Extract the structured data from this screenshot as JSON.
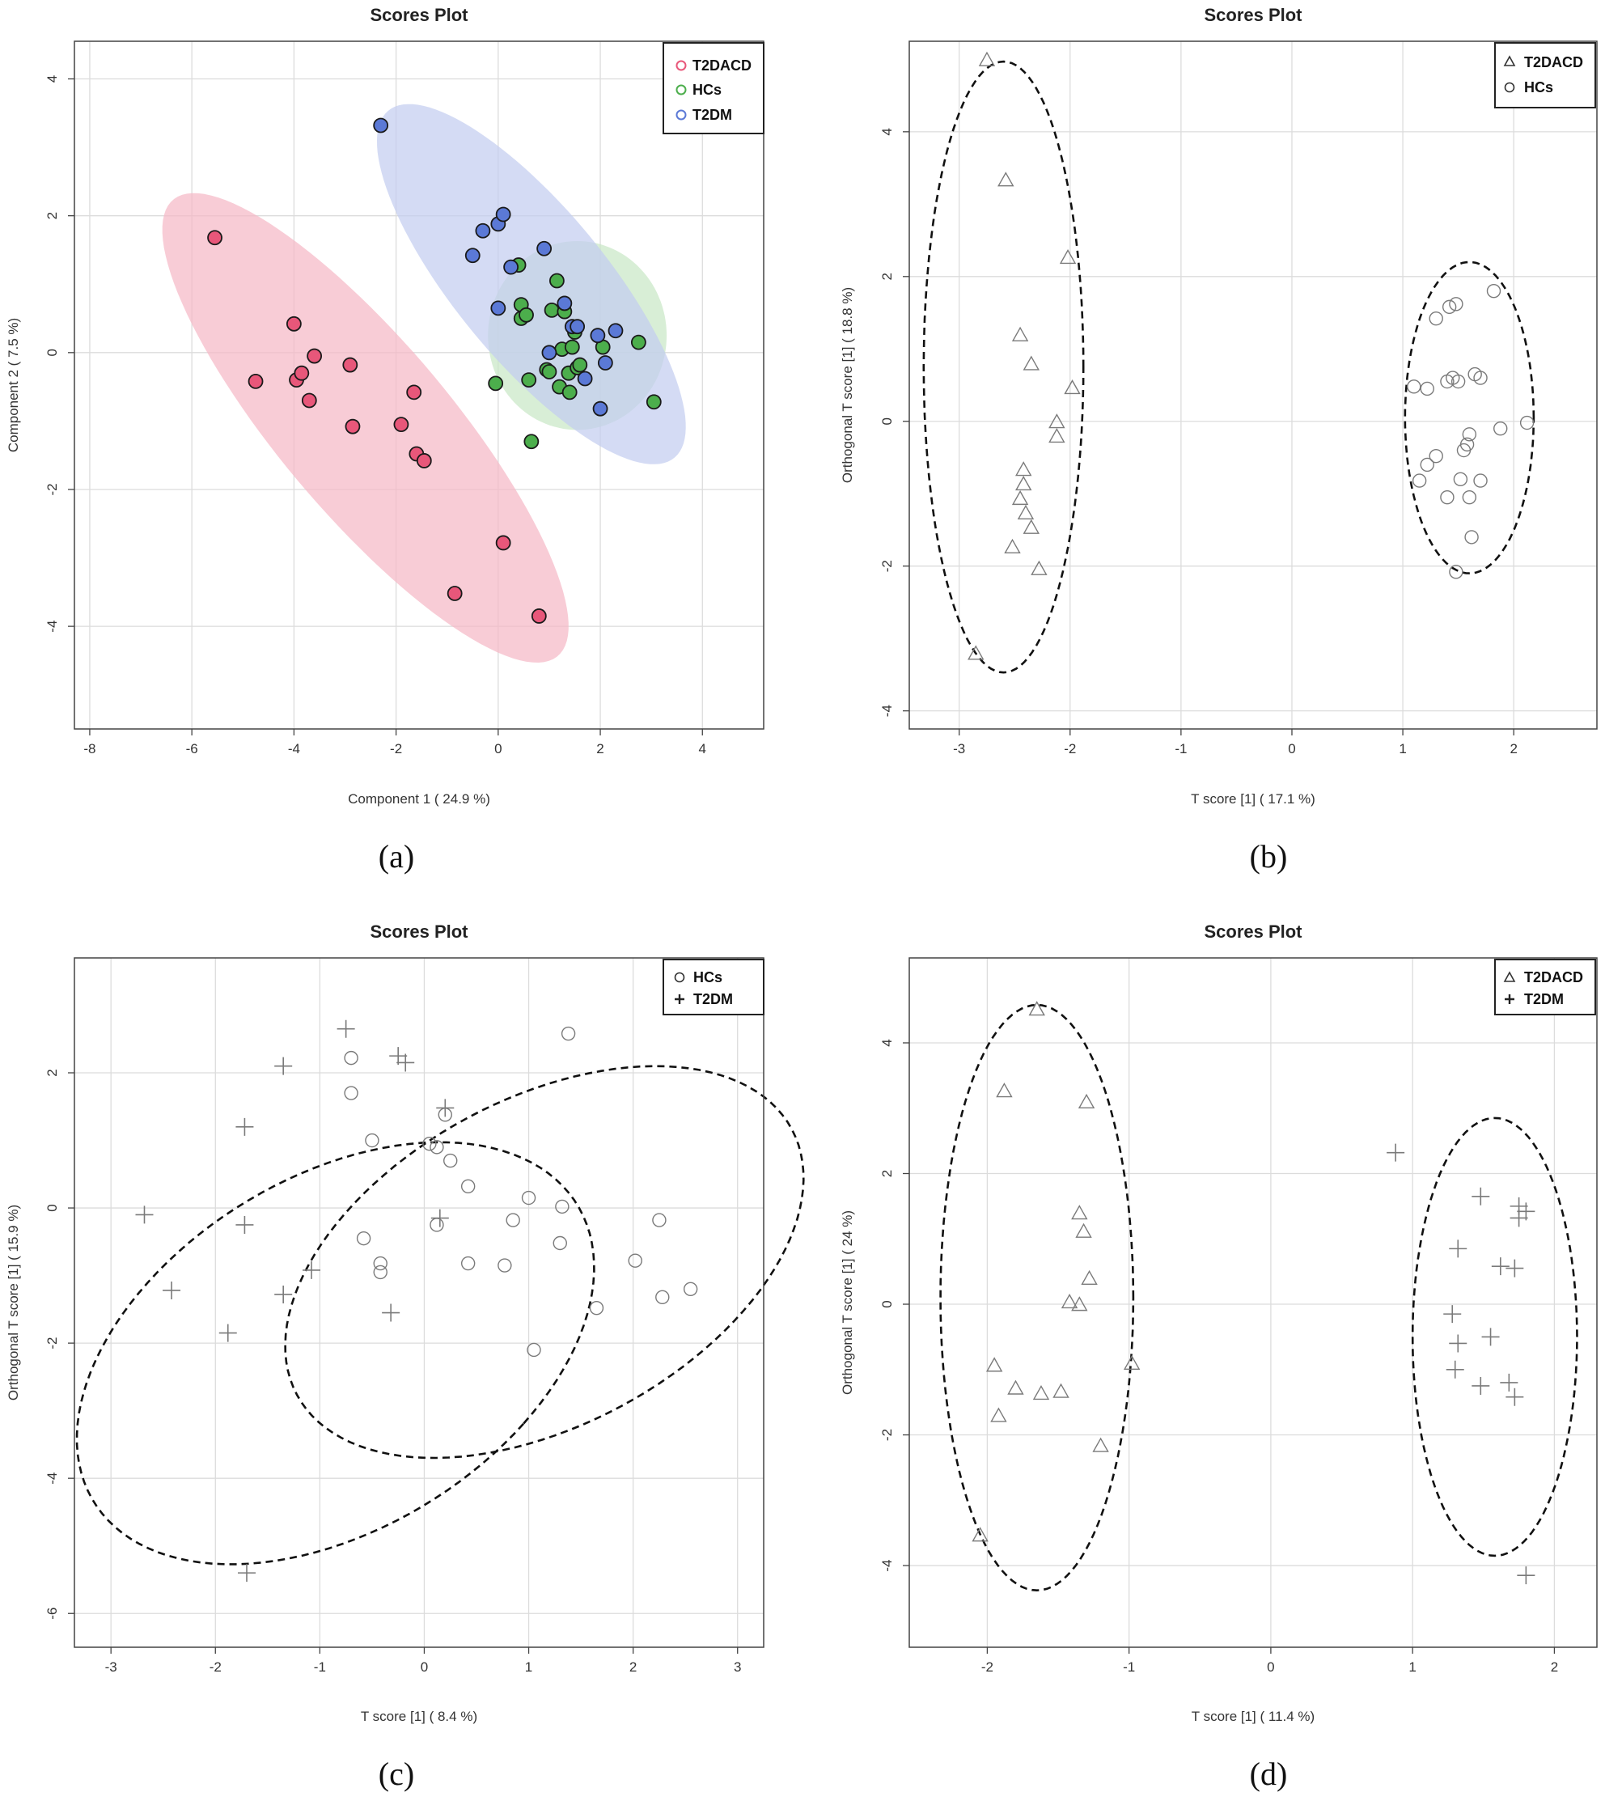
{
  "figure": {
    "panel_labels": [
      "(a)",
      "(b)",
      "(c)",
      "(d)"
    ]
  },
  "chart_data": [
    {
      "id": "a",
      "type": "scatter",
      "title": "Scores Plot",
      "xlabel": "Component 1 ( 24.9 %)",
      "ylabel": "Component 2 ( 7.5 %)",
      "xlim": [
        -8.3,
        5.2
      ],
      "ylim": [
        -5.5,
        4.55
      ],
      "xticks": [
        -8,
        -6,
        -4,
        -2,
        0,
        2,
        4
      ],
      "yticks": [
        -4,
        -2,
        0,
        2,
        4
      ],
      "legend_position": "top-right",
      "colors": {
        "T2DACD": "#e8577a",
        "HCs": "#4cae4c",
        "T2DM": "#5b79d6"
      },
      "fills": {
        "T2DACD": "#f5b8c6",
        "HCs": "#c9e8c6",
        "T2DM": "#c4cdf0"
      },
      "series": [
        {
          "name": "T2DACD",
          "marker": "circle",
          "ellipse": {
            "cx": -2.6,
            "cy": -1.1,
            "rx": 5.05,
            "ry": 1.45,
            "angle": -40
          },
          "points": [
            [
              -5.55,
              1.68
            ],
            [
              -4.75,
              -0.42
            ],
            [
              -4.0,
              0.42
            ],
            [
              -3.95,
              -0.4
            ],
            [
              -3.85,
              -0.3
            ],
            [
              -3.7,
              -0.7
            ],
            [
              -3.6,
              -0.05
            ],
            [
              -2.9,
              -0.18
            ],
            [
              -2.85,
              -1.08
            ],
            [
              -1.9,
              -1.05
            ],
            [
              -1.65,
              -0.58
            ],
            [
              -1.6,
              -1.48
            ],
            [
              -1.45,
              -1.58
            ],
            [
              -0.85,
              -3.52
            ],
            [
              0.1,
              -2.78
            ],
            [
              0.8,
              -3.85
            ]
          ]
        },
        {
          "name": "HCs",
          "marker": "circle",
          "ellipse": {
            "cx": 1.55,
            "cy": 0.25,
            "rx": 1.75,
            "ry": 1.38,
            "angle": 0
          },
          "points": [
            [
              -0.05,
              -0.45
            ],
            [
              0.4,
              1.28
            ],
            [
              0.45,
              0.7
            ],
            [
              0.45,
              0.5
            ],
            [
              0.55,
              0.55
            ],
            [
              0.6,
              -0.4
            ],
            [
              0.65,
              -1.3
            ],
            [
              0.95,
              -0.25
            ],
            [
              1.0,
              -0.28
            ],
            [
              1.05,
              0.62
            ],
            [
              1.15,
              1.05
            ],
            [
              1.2,
              -0.5
            ],
            [
              1.25,
              0.05
            ],
            [
              1.3,
              0.6
            ],
            [
              1.38,
              -0.3
            ],
            [
              1.4,
              -0.58
            ],
            [
              1.45,
              0.08
            ],
            [
              1.5,
              0.3
            ],
            [
              1.55,
              -0.22
            ],
            [
              1.6,
              -0.18
            ],
            [
              2.05,
              0.08
            ],
            [
              2.75,
              0.15
            ],
            [
              3.05,
              -0.72
            ]
          ]
        },
        {
          "name": "T2DM",
          "marker": "circle",
          "ellipse": {
            "cx": 0.65,
            "cy": 1.0,
            "rx": 3.8,
            "ry": 1.28,
            "angle": -40
          },
          "points": [
            [
              -2.3,
              3.32
            ],
            [
              -0.5,
              1.42
            ],
            [
              -0.3,
              1.78
            ],
            [
              0.0,
              1.88
            ],
            [
              0.1,
              2.02
            ],
            [
              0.25,
              1.25
            ],
            [
              0.0,
              0.65
            ],
            [
              0.9,
              1.52
            ],
            [
              1.0,
              0.0
            ],
            [
              1.3,
              0.72
            ],
            [
              1.45,
              0.38
            ],
            [
              1.55,
              0.38
            ],
            [
              1.7,
              -0.38
            ],
            [
              1.95,
              0.25
            ],
            [
              2.0,
              -0.82
            ],
            [
              2.1,
              -0.15
            ],
            [
              2.3,
              0.32
            ]
          ]
        }
      ]
    },
    {
      "id": "b",
      "type": "scatter",
      "title": "Scores Plot",
      "xlabel": "T score [1] ( 17.1 %)",
      "ylabel": "Orthogonal T score [1] ( 18.8 %)",
      "xlim": [
        -3.45,
        2.75
      ],
      "ylim": [
        -4.25,
        5.25
      ],
      "xticks": [
        -3,
        -2,
        -1,
        0,
        1,
        2
      ],
      "yticks": [
        -4,
        -2,
        0,
        2,
        4
      ],
      "legend_position": "top-right",
      "series": [
        {
          "name": "T2DACD",
          "marker": "triangle",
          "ellipse": {
            "cx": -2.6,
            "cy": 0.75,
            "rx": 0.72,
            "ry": 4.22,
            "angle": 0
          },
          "points": [
            [
              -2.75,
              4.98
            ],
            [
              -2.58,
              3.32
            ],
            [
              -2.02,
              2.25
            ],
            [
              -2.45,
              1.18
            ],
            [
              -2.35,
              0.78
            ],
            [
              -1.98,
              0.45
            ],
            [
              -2.12,
              -0.02
            ],
            [
              -2.12,
              -0.22
            ],
            [
              -2.42,
              -0.68
            ],
            [
              -2.42,
              -0.88
            ],
            [
              -2.45,
              -1.08
            ],
            [
              -2.4,
              -1.28
            ],
            [
              -2.35,
              -1.48
            ],
            [
              -2.52,
              -1.75
            ],
            [
              -2.28,
              -2.05
            ],
            [
              -2.85,
              -3.22
            ]
          ]
        },
        {
          "name": "HCs",
          "marker": "circle",
          "ellipse": {
            "cx": 1.6,
            "cy": 0.05,
            "rx": 0.58,
            "ry": 2.15,
            "angle": 0
          },
          "points": [
            [
              1.3,
              1.42
            ],
            [
              1.42,
              1.58
            ],
            [
              1.48,
              1.62
            ],
            [
              1.82,
              1.8
            ],
            [
              1.1,
              0.48
            ],
            [
              1.22,
              0.45
            ],
            [
              1.4,
              0.55
            ],
            [
              1.45,
              0.6
            ],
            [
              1.5,
              0.55
            ],
            [
              1.65,
              0.65
            ],
            [
              1.7,
              0.6
            ],
            [
              1.6,
              -0.18
            ],
            [
              1.58,
              -0.32
            ],
            [
              1.55,
              -0.4
            ],
            [
              1.88,
              -0.1
            ],
            [
              2.12,
              -0.02
            ],
            [
              1.3,
              -0.48
            ],
            [
              1.22,
              -0.6
            ],
            [
              1.15,
              -0.82
            ],
            [
              1.52,
              -0.8
            ],
            [
              1.7,
              -0.82
            ],
            [
              1.4,
              -1.05
            ],
            [
              1.6,
              -1.05
            ],
            [
              1.62,
              -1.6
            ],
            [
              1.48,
              -2.08
            ]
          ]
        }
      ]
    },
    {
      "id": "c",
      "type": "scatter",
      "title": "Scores Plot",
      "xlabel": "T score [1] ( 8.4 %)",
      "ylabel": "Orthogonal T score [1] ( 15.9 %)",
      "xlim": [
        -3.35,
        3.25
      ],
      "ylim": [
        -6.5,
        3.7
      ],
      "xticks": [
        -3,
        -2,
        -1,
        0,
        1,
        2,
        3
      ],
      "yticks": [
        -6,
        -4,
        -2,
        0,
        2
      ],
      "legend_position": "top-right",
      "series": [
        {
          "name": "HCs",
          "marker": "circle",
          "ellipse": {
            "cx": 1.15,
            "cy": -0.8,
            "rx": 2.0,
            "ry": 3.25,
            "angle": -35
          },
          "points": [
            [
              1.38,
              2.58
            ],
            [
              -0.7,
              2.22
            ],
            [
              -0.7,
              1.7
            ],
            [
              0.2,
              1.38
            ],
            [
              -0.5,
              1.0
            ],
            [
              0.05,
              0.95
            ],
            [
              0.12,
              0.9
            ],
            [
              0.25,
              0.7
            ],
            [
              0.42,
              0.32
            ],
            [
              1.0,
              0.15
            ],
            [
              1.32,
              0.02
            ],
            [
              2.25,
              -0.18
            ],
            [
              0.85,
              -0.18
            ],
            [
              0.12,
              -0.25
            ],
            [
              -0.58,
              -0.45
            ],
            [
              1.3,
              -0.52
            ],
            [
              -0.42,
              -0.82
            ],
            [
              -0.42,
              -0.95
            ],
            [
              0.42,
              -0.82
            ],
            [
              0.77,
              -0.85
            ],
            [
              2.02,
              -0.78
            ],
            [
              2.55,
              -1.2
            ],
            [
              2.28,
              -1.32
            ],
            [
              1.65,
              -1.48
            ],
            [
              1.05,
              -2.1
            ]
          ]
        },
        {
          "name": "T2DM",
          "marker": "plus",
          "ellipse": {
            "cx": -0.85,
            "cy": -2.15,
            "rx": 2.08,
            "ry": 3.4,
            "angle": -30
          },
          "points": [
            [
              -0.75,
              2.65
            ],
            [
              -0.25,
              2.25
            ],
            [
              -0.18,
              2.15
            ],
            [
              -1.35,
              2.1
            ],
            [
              0.2,
              1.48
            ],
            [
              -1.72,
              1.2
            ],
            [
              -2.68,
              -0.1
            ],
            [
              -1.72,
              -0.25
            ],
            [
              0.15,
              -0.15
            ],
            [
              -1.08,
              -0.92
            ],
            [
              -2.42,
              -1.22
            ],
            [
              -1.35,
              -1.28
            ],
            [
              -0.32,
              -1.55
            ],
            [
              -1.88,
              -1.85
            ],
            [
              -1.7,
              -5.4
            ]
          ]
        }
      ]
    },
    {
      "id": "d",
      "type": "scatter",
      "title": "Scores Plot",
      "xlabel": "T score [1] ( 11.4 %)",
      "ylabel": "Orthogonal T score [1] ( 24 %)",
      "xlim": [
        -2.55,
        2.3
      ],
      "ylim": [
        -5.25,
        5.3
      ],
      "xticks": [
        -2,
        -1,
        0,
        1,
        2
      ],
      "yticks": [
        -4,
        -2,
        0,
        2,
        4
      ],
      "legend_position": "top-right",
      "series": [
        {
          "name": "T2DACD",
          "marker": "triangle",
          "ellipse": {
            "cx": -1.65,
            "cy": 0.1,
            "rx": 0.68,
            "ry": 4.48,
            "angle": 0
          },
          "points": [
            [
              -1.65,
              4.5
            ],
            [
              -1.88,
              3.25
            ],
            [
              -1.3,
              3.08
            ],
            [
              -1.35,
              1.38
            ],
            [
              -1.32,
              1.1
            ],
            [
              -1.28,
              0.38
            ],
            [
              -1.42,
              0.02
            ],
            [
              -1.35,
              -0.02
            ],
            [
              -1.95,
              -0.95
            ],
            [
              -0.98,
              -0.92
            ],
            [
              -1.8,
              -1.3
            ],
            [
              -1.62,
              -1.38
            ],
            [
              -1.48,
              -1.35
            ],
            [
              -1.92,
              -1.72
            ],
            [
              -1.2,
              -2.18
            ],
            [
              -2.05,
              -3.55
            ]
          ]
        },
        {
          "name": "T2DM",
          "marker": "plus",
          "ellipse": {
            "cx": 1.58,
            "cy": -0.5,
            "rx": 0.58,
            "ry": 3.35,
            "angle": 0
          },
          "points": [
            [
              0.88,
              2.32
            ],
            [
              1.48,
              1.65
            ],
            [
              1.75,
              1.5
            ],
            [
              1.8,
              1.42
            ],
            [
              1.75,
              1.32
            ],
            [
              1.32,
              0.85
            ],
            [
              1.62,
              0.58
            ],
            [
              1.72,
              0.55
            ],
            [
              1.28,
              -0.15
            ],
            [
              1.55,
              -0.5
            ],
            [
              1.32,
              -0.6
            ],
            [
              1.3,
              -1.0
            ],
            [
              1.48,
              -1.25
            ],
            [
              1.68,
              -1.2
            ],
            [
              1.72,
              -1.42
            ],
            [
              1.8,
              -4.15
            ]
          ]
        }
      ]
    }
  ]
}
